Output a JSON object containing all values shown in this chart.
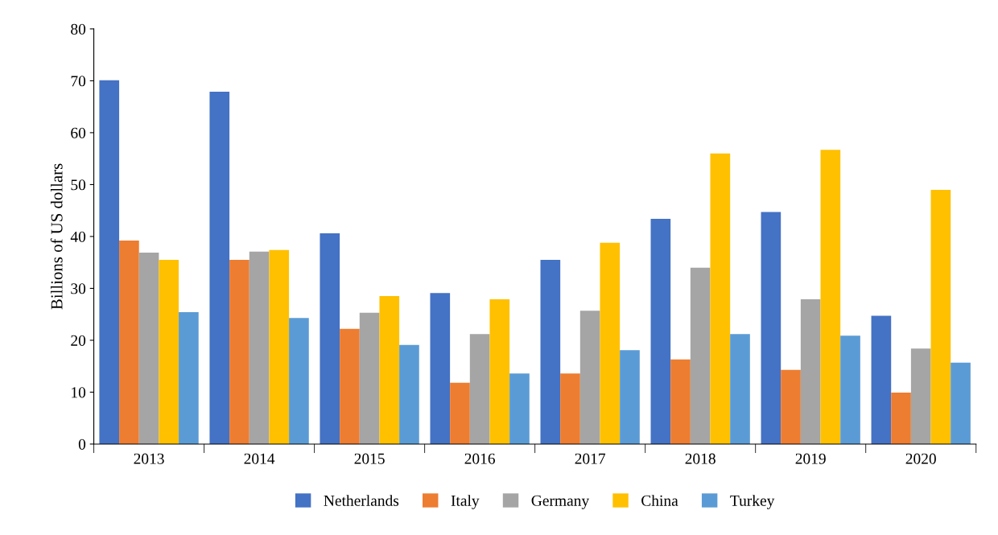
{
  "chart_data": {
    "type": "bar",
    "ylabel": "Billions of US dollars",
    "categories": [
      "2013",
      "2014",
      "2015",
      "2016",
      "2017",
      "2018",
      "2019",
      "2020"
    ],
    "series": [
      {
        "name": "Netherlands",
        "color": "#4472c4",
        "values": [
          70.1,
          67.9,
          40.6,
          29.1,
          35.5,
          43.4,
          44.7,
          24.7
        ]
      },
      {
        "name": "Italy",
        "color": "#ed7d31",
        "values": [
          39.2,
          35.5,
          22.2,
          11.8,
          13.6,
          16.3,
          14.3,
          9.9
        ]
      },
      {
        "name": "Germany",
        "color": "#a5a5a5",
        "values": [
          36.9,
          37.1,
          25.3,
          21.2,
          25.7,
          34.0,
          27.9,
          18.4
        ]
      },
      {
        "name": "China",
        "color": "#ffc000",
        "values": [
          35.5,
          37.4,
          28.5,
          27.9,
          38.8,
          56.0,
          56.7,
          49.0
        ]
      },
      {
        "name": "Turkey",
        "color": "#5b9bd5",
        "values": [
          25.4,
          24.3,
          19.1,
          13.6,
          18.1,
          21.2,
          20.9,
          15.7
        ]
      }
    ],
    "ylim": [
      0,
      80
    ],
    "yticks": [
      0,
      10,
      20,
      30,
      40,
      50,
      60,
      70,
      80
    ],
    "grid": false,
    "legend": "bottom"
  }
}
